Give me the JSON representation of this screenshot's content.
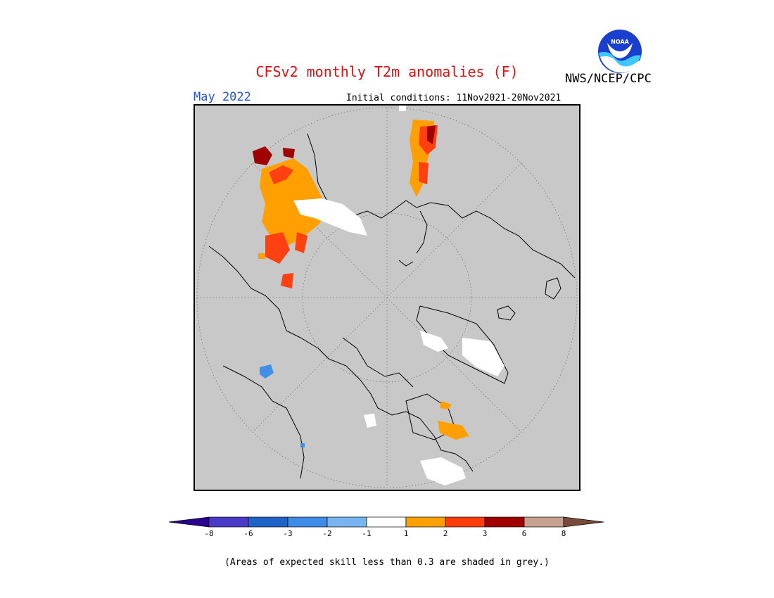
{
  "header": {
    "title": "CFSv2 monthly T2m anomalies (F)",
    "month": "May 2022",
    "initial_conditions": "Initial conditions: 11Nov2021-20Nov2021",
    "agency": "NWS/NCEP/CPC",
    "logo_text": "NOAA"
  },
  "colors": {
    "title": "#e01010",
    "month": "#2255dd",
    "map_background": "#c8c8c8",
    "white_anomaly": "#ffffff",
    "plus1": "#ffa000",
    "plus2": "#ff4010",
    "plus3": "#a00000",
    "minus1": "#7ab8f0",
    "minus2": "#4090e8"
  },
  "colorbar": {
    "segments": [
      {
        "color": "#2a0090"
      },
      {
        "color": "#4a3ac8"
      },
      {
        "color": "#1e64c8"
      },
      {
        "color": "#3c8ce8"
      },
      {
        "color": "#78b4f0"
      },
      {
        "color": "#ffffff"
      },
      {
        "color": "#ffa000"
      },
      {
        "color": "#ff3c0a"
      },
      {
        "color": "#a00000"
      },
      {
        "color": "#c8a090"
      },
      {
        "color": "#7a4a3a"
      }
    ],
    "labels": [
      "-8",
      "-6",
      "-3",
      "-2",
      "-1",
      "1",
      "2",
      "3",
      "6",
      "8"
    ]
  },
  "footnote": "(Areas of expected skill less than 0.3 are shaded in grey.)",
  "map": {
    "projection": "north-polar-stereographic",
    "graticule": "dotted"
  }
}
